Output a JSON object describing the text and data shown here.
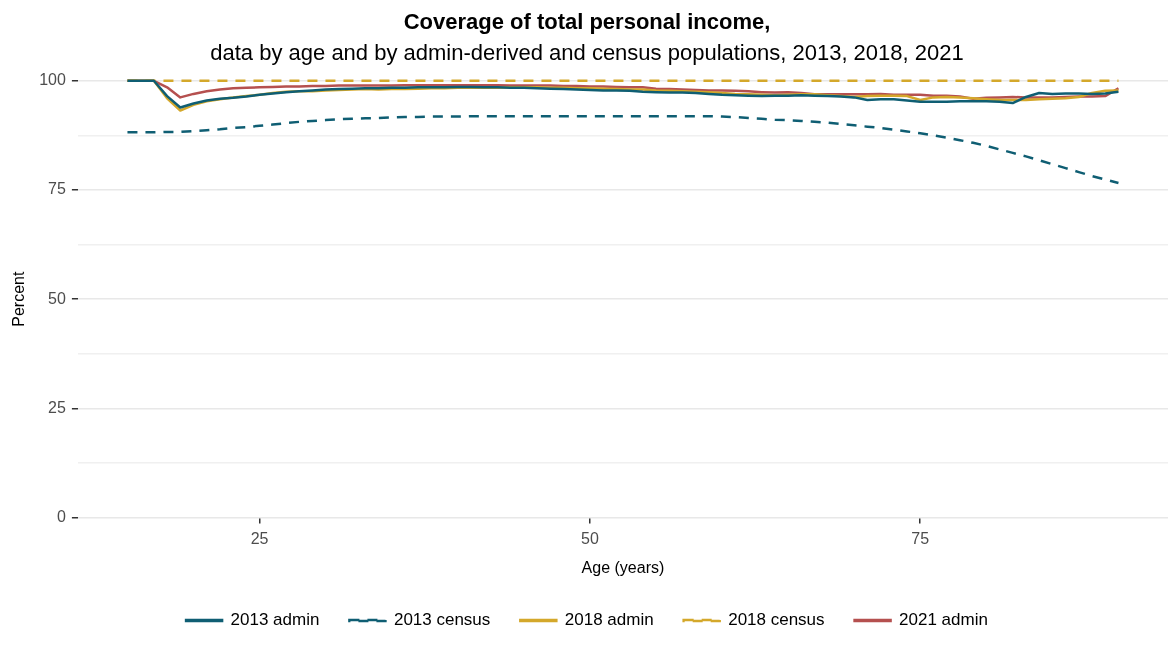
{
  "chart_data": {
    "type": "line",
    "title": "Coverage of total personal income,",
    "subtitle": "data by age and by admin-derived and census populations, 2013, 2018, 2021",
    "xlabel": "Age (years)",
    "ylabel": "Percent",
    "x": [
      15,
      16,
      17,
      18,
      19,
      20,
      21,
      22,
      23,
      24,
      25,
      26,
      27,
      28,
      29,
      30,
      31,
      32,
      33,
      34,
      35,
      36,
      37,
      38,
      39,
      40,
      41,
      42,
      43,
      44,
      45,
      46,
      47,
      48,
      49,
      50,
      51,
      52,
      53,
      54,
      55,
      56,
      57,
      58,
      59,
      60,
      61,
      62,
      63,
      64,
      65,
      66,
      67,
      68,
      69,
      70,
      71,
      72,
      73,
      74,
      75,
      76,
      77,
      78,
      79,
      80,
      81,
      82,
      83,
      84,
      85,
      86,
      87,
      88,
      89,
      90
    ],
    "xlim": [
      11.25,
      93.75
    ],
    "xticks": [
      25,
      50,
      75
    ],
    "ylim": [
      0,
      100
    ],
    "yticks": [
      0,
      {
        "value": 12.5,
        "label": null
      },
      25,
      {
        "value": 37.5,
        "label": null
      },
      50,
      {
        "value": 62.5,
        "label": null
      },
      75,
      {
        "value": 87.5,
        "label": null
      },
      100
    ],
    "grid": "y",
    "legend": "bottom",
    "marker": "none",
    "series": [
      {
        "name": "2013 admin",
        "color": "#0f5e73",
        "line_style": "solid",
        "values": [
          100,
          100,
          100,
          96.5,
          93.9,
          94.8,
          95.5,
          95.9,
          96.1,
          96.4,
          96.8,
          97.1,
          97.4,
          97.6,
          97.8,
          98.0,
          98.1,
          98.2,
          98.3,
          98.3,
          98.4,
          98.4,
          98.5,
          98.5,
          98.5,
          98.6,
          98.6,
          98.5,
          98.5,
          98.4,
          98.4,
          98.3,
          98.2,
          98.1,
          98.0,
          97.9,
          97.8,
          97.8,
          97.7,
          97.5,
          97.4,
          97.3,
          97.3,
          97.2,
          97.0,
          96.8,
          96.7,
          96.6,
          96.5,
          96.6,
          96.6,
          96.7,
          96.6,
          96.5,
          96.4,
          96.2,
          95.6,
          95.8,
          95.8,
          95.5,
          95.2,
          95.2,
          95.2,
          95.3,
          95.3,
          95.3,
          95.2,
          94.9,
          96.3,
          97.2,
          97.0,
          97.1,
          97.1,
          97.0,
          97.1,
          97.5
        ]
      },
      {
        "name": "2013 census",
        "color": "#0f5e73",
        "line_style": "dashed",
        "values": [
          88.2,
          88.2,
          88.2,
          88.3,
          88.3,
          88.5,
          88.7,
          88.9,
          89.2,
          89.4,
          89.7,
          90.0,
          90.3,
          90.6,
          90.8,
          91.0,
          91.2,
          91.3,
          91.4,
          91.5,
          91.6,
          91.7,
          91.7,
          91.8,
          91.8,
          91.8,
          91.9,
          91.9,
          91.9,
          91.9,
          91.9,
          91.9,
          91.9,
          91.9,
          91.9,
          91.9,
          91.9,
          91.9,
          91.9,
          91.9,
          91.9,
          91.9,
          91.9,
          91.9,
          91.9,
          91.8,
          91.7,
          91.5,
          91.3,
          91.1,
          91.0,
          90.8,
          90.6,
          90.4,
          90.1,
          89.8,
          89.5,
          89.2,
          88.8,
          88.4,
          88.0,
          87.5,
          87.0,
          86.4,
          85.8,
          85.1,
          84.3,
          83.5,
          82.7,
          81.8,
          80.9,
          80.0,
          79.1,
          78.2,
          77.4,
          76.6
        ]
      },
      {
        "name": "2018 admin",
        "color": "#d4a82b",
        "line_style": "solid",
        "values": [
          100,
          100,
          100,
          96.0,
          93.2,
          94.5,
          95.3,
          95.8,
          96.2,
          96.5,
          96.8,
          97.2,
          97.5,
          97.6,
          97.6,
          97.8,
          97.9,
          98.0,
          98.1,
          98.0,
          98.1,
          98.1,
          98.2,
          98.3,
          98.3,
          98.4,
          98.4,
          98.4,
          98.4,
          98.5,
          98.5,
          98.5,
          98.4,
          98.4,
          98.3,
          98.3,
          98.2,
          98.1,
          98.0,
          98.0,
          97.8,
          97.7,
          97.6,
          97.5,
          97.4,
          97.2,
          97.0,
          96.9,
          96.8,
          96.7,
          96.8,
          96.9,
          96.9,
          96.7,
          96.5,
          96.3,
          96.5,
          96.6,
          96.6,
          96.5,
          95.6,
          96.2,
          96.3,
          96.2,
          96.0,
          95.8,
          95.6,
          95.6,
          95.6,
          95.8,
          95.9,
          96.0,
          96.3,
          97.2,
          97.7,
          97.8
        ]
      },
      {
        "name": "2018 census",
        "color": "#d4a82b",
        "line_style": "dashed",
        "values": [
          100,
          100,
          100,
          100,
          100,
          100,
          100,
          100,
          100,
          100,
          100,
          100,
          100,
          100,
          100,
          100,
          100,
          100,
          100,
          100,
          100,
          100,
          100,
          100,
          100,
          100,
          100,
          100,
          100,
          100,
          100,
          100,
          100,
          100,
          100,
          100,
          100,
          100,
          100,
          100,
          100,
          100,
          100,
          100,
          100,
          100,
          100,
          100,
          100,
          100,
          100,
          100,
          100,
          100,
          100,
          100,
          100,
          100,
          100,
          100,
          100,
          100,
          100,
          100,
          100,
          100,
          100,
          100,
          100,
          100,
          100,
          100,
          100,
          100,
          100,
          100
        ]
      },
      {
        "name": "2021 admin",
        "color": "#b5504f",
        "line_style": "solid",
        "values": [
          100,
          100,
          100,
          98.5,
          96.2,
          97.0,
          97.6,
          98.0,
          98.3,
          98.4,
          98.5,
          98.6,
          98.7,
          98.7,
          98.8,
          98.8,
          98.9,
          98.9,
          98.9,
          98.9,
          98.9,
          99.0,
          99.0,
          99.0,
          99.0,
          99.0,
          99.0,
          99.0,
          99.0,
          98.9,
          98.9,
          98.9,
          98.9,
          98.8,
          98.8,
          98.7,
          98.7,
          98.6,
          98.5,
          98.5,
          98.2,
          98.1,
          98.0,
          97.9,
          97.8,
          97.8,
          97.7,
          97.6,
          97.4,
          97.3,
          97.4,
          97.2,
          96.9,
          96.9,
          96.9,
          96.9,
          96.9,
          97.0,
          96.8,
          96.8,
          96.8,
          96.6,
          96.6,
          96.4,
          95.9,
          96.1,
          96.2,
          96.3,
          96.2,
          96.2,
          96.2,
          96.3,
          96.4,
          96.4,
          96.5,
          98.3
        ]
      }
    ]
  }
}
